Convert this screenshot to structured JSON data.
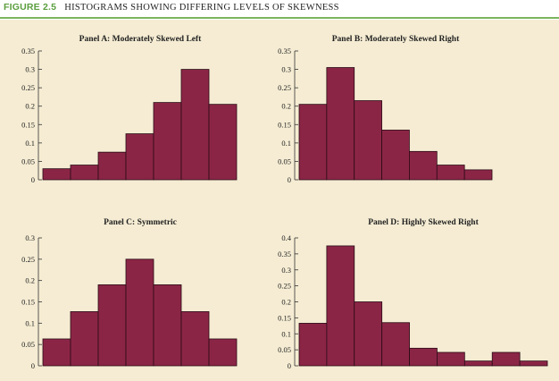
{
  "figure": {
    "number": "FIGURE 2.5",
    "title": "HISTOGRAMS SHOWING DIFFERING LEVELS OF SKEWNESS"
  },
  "colors": {
    "bar_fill": "#8b2546",
    "bar_stroke": "#2a0b15",
    "background": "#f5ecd3",
    "figure_number": "#5a9e3e",
    "rule": "#7ab55c"
  },
  "chart_data": [
    {
      "type": "bar",
      "title": "Panel A: Moderately Skewed Left",
      "values": [
        0.03,
        0.04,
        0.075,
        0.125,
        0.21,
        0.3,
        0.205
      ],
      "ylim": [
        0,
        0.35
      ],
      "yticks": [
        "0",
        "0.05",
        "0.1",
        "0.15",
        "0.2",
        "0.25",
        "0.3",
        "0.35"
      ],
      "xlabel": "",
      "ylabel": "",
      "grid": false
    },
    {
      "type": "bar",
      "title": "Panel B: Moderately Skewed Right",
      "values": [
        0.205,
        0.305,
        0.215,
        0.135,
        0.077,
        0.04,
        0.027
      ],
      "ylim": [
        0,
        0.35
      ],
      "yticks": [
        "0",
        "0.05",
        "0.1",
        "0.15",
        "0.2",
        "0.25",
        "0.3",
        "0.35"
      ],
      "xlabel": "",
      "ylabel": "",
      "grid": false
    },
    {
      "type": "bar",
      "title": "Panel C: Symmetric",
      "values": [
        0.063,
        0.127,
        0.19,
        0.25,
        0.19,
        0.127,
        0.063
      ],
      "ylim": [
        0,
        0.3
      ],
      "yticks": [
        "0",
        "0.05",
        "0.1",
        "0.15",
        "0.2",
        "0.25",
        "0.3"
      ],
      "xlabel": "",
      "ylabel": "",
      "grid": false
    },
    {
      "type": "bar",
      "title": "Panel D: Highly Skewed Right",
      "values": [
        0.133,
        0.375,
        0.2,
        0.135,
        0.055,
        0.042,
        0.015,
        0.042,
        0.015
      ],
      "ylim": [
        0,
        0.4
      ],
      "yticks": [
        "0",
        "0.05",
        "0.1",
        "0.15",
        "0.2",
        "0.25",
        "0.3",
        "0.35",
        "0.4"
      ],
      "xlabel": "",
      "ylabel": "",
      "grid": false
    }
  ]
}
